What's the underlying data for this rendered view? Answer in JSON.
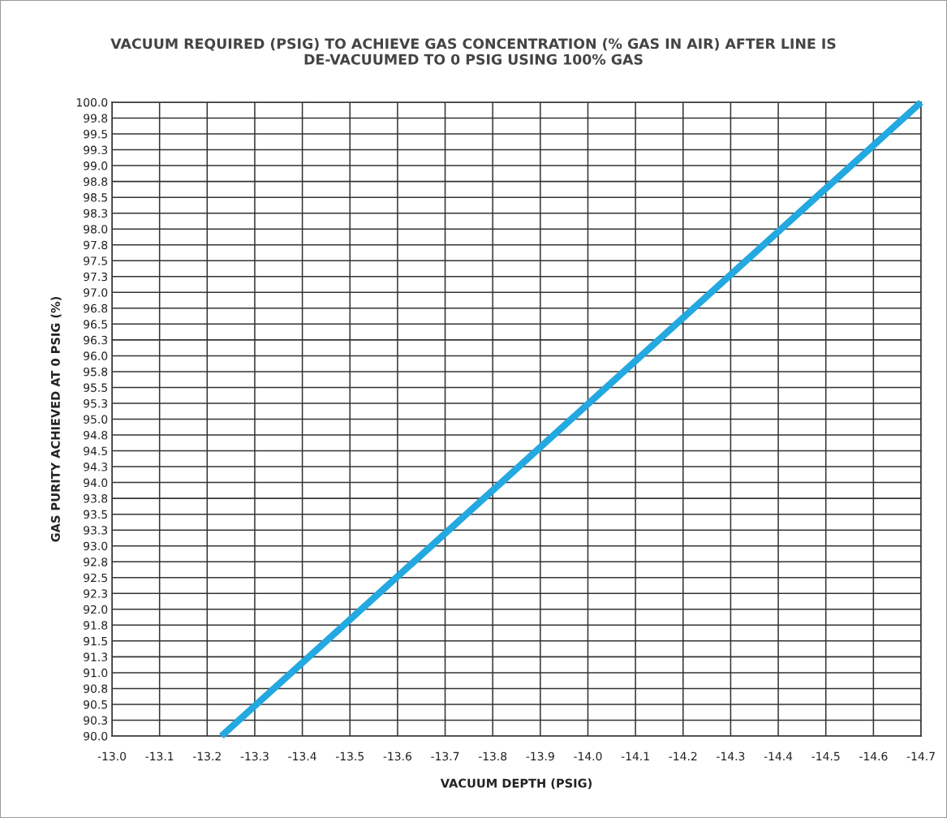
{
  "chart_data": {
    "type": "line",
    "title": "VACUUM REQUIRED (PSIG) TO ACHIEVE GAS CONCENTRATION (% GAS IN AIR) AFTER LINE IS\nDE-VACUUMED TO 0 PSIG USING 100% GAS",
    "xlabel": "VACUUM DEPTH (PSIG)",
    "ylabel": "GAS PURITY ACHIEVED AT 0 PSIG (%)",
    "series": [
      {
        "color": "#23a8e0",
        "x": [
          -13.23,
          -14.7
        ],
        "values": [
          90.0,
          100.0
        ]
      }
    ],
    "xlim": [
      -13.0,
      -14.7
    ],
    "xticks": [
      {
        "value": -13,
        "label": "-13.0"
      },
      -13.1,
      -13.2,
      -13.3,
      -13.4,
      -13.5,
      -13.6,
      -13.7,
      -13.8,
      -13.9,
      {
        "value": -14,
        "label": "-14.0"
      },
      -14.1,
      -14.2,
      -14.3,
      -14.4,
      -14.5,
      -14.6,
      -14.7
    ],
    "ylim": [
      90.0,
      100.0
    ],
    "yticks": [
      {
        "value": 90,
        "label": "90.0"
      },
      {
        "value": 90.25,
        "label": "90.3"
      },
      90.5,
      {
        "value": 90.75,
        "label": "90.8"
      },
      {
        "value": 91,
        "label": "91.0"
      },
      {
        "value": 91.25,
        "label": "91.3"
      },
      91.5,
      {
        "value": 91.75,
        "label": "91.8"
      },
      {
        "value": 92,
        "label": "92.0"
      },
      {
        "value": 92.25,
        "label": "92.3"
      },
      92.5,
      {
        "value": 92.75,
        "label": "92.8"
      },
      {
        "value": 93,
        "label": "93.0"
      },
      {
        "value": 93.25,
        "label": "93.3"
      },
      93.5,
      {
        "value": 93.75,
        "label": "93.8"
      },
      {
        "value": 94,
        "label": "94.0"
      },
      {
        "value": 94.25,
        "label": "94.3"
      },
      94.5,
      {
        "value": 94.75,
        "label": "94.8"
      },
      {
        "value": 95,
        "label": "95.0"
      },
      {
        "value": 95.25,
        "label": "95.3"
      },
      95.5,
      {
        "value": 95.75,
        "label": "95.8"
      },
      {
        "value": 96,
        "label": "96.0"
      },
      {
        "value": 96.25,
        "label": "96.3"
      },
      96.5,
      {
        "value": 96.75,
        "label": "96.8"
      },
      {
        "value": 97,
        "label": "97.0"
      },
      {
        "value": 97.25,
        "label": "97.3"
      },
      97.5,
      {
        "value": 97.75,
        "label": "97.8"
      },
      {
        "value": 98,
        "label": "98.0"
      },
      {
        "value": 98.25,
        "label": "98.3"
      },
      98.5,
      {
        "value": 98.75,
        "label": "98.8"
      },
      {
        "value": 99,
        "label": "99.0"
      },
      {
        "value": 99.25,
        "label": "99.3"
      },
      99.5,
      {
        "value": 99.75,
        "label": "99.8"
      },
      {
        "value": 100,
        "label": "100.0"
      }
    ],
    "grid": true,
    "marker": "none",
    "line_style": "solid",
    "legend": false
  }
}
